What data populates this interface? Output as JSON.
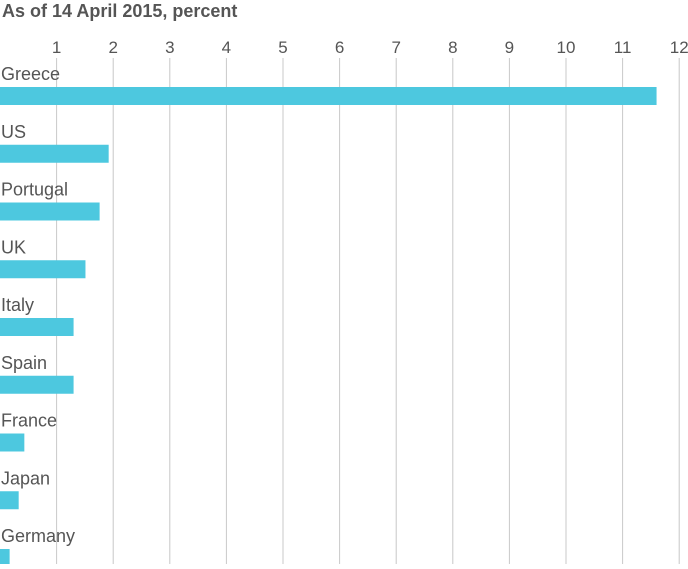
{
  "chart_data": {
    "type": "bar",
    "orientation": "horizontal",
    "title": "As of 14 April 2015, percent",
    "xlabel": "",
    "ylabel": "",
    "xlim": [
      0,
      12
    ],
    "ticks": [
      1,
      2,
      3,
      4,
      5,
      6,
      7,
      8,
      9,
      10,
      11,
      12
    ],
    "grid": true,
    "categories": [
      "Greece",
      "US",
      "Portugal",
      "UK",
      "Italy",
      "Spain",
      "France",
      "Japan",
      "Germany"
    ],
    "values": [
      11.6,
      1.92,
      1.76,
      1.51,
      1.3,
      1.3,
      0.43,
      0.33,
      0.17
    ],
    "bar_color": "#4dc8df",
    "grid_color": "#c8c8c8",
    "text_color": "#555555"
  }
}
